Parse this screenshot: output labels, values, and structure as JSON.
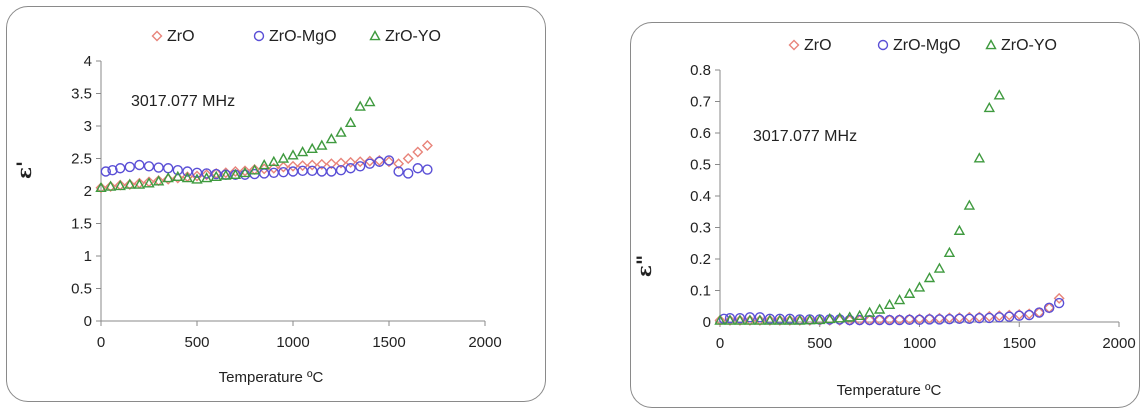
{
  "colors": {
    "ZrO": "#e8847a",
    "ZrO-MgO": "#5a4fd6",
    "ZrO-YO": "#3f9a3f"
  },
  "chart_data": [
    {
      "type": "scatter",
      "title": "",
      "xlabel": "Temperature  ºC",
      "ylabel": "ε'",
      "annotation": "3017.077  MHz",
      "xlim": [
        0,
        2000
      ],
      "ylim": [
        0,
        4
      ],
      "xticks": [
        "0",
        "500",
        "1000",
        "1500",
        "2000"
      ],
      "yticks": [
        "0",
        "0.5",
        "1",
        "1.5",
        "2",
        "2.5",
        "3",
        "3.5",
        "4"
      ],
      "legend": [
        "ZrO",
        "ZrO-MgO",
        "ZrO-YO"
      ],
      "legend_position": "top",
      "series": [
        {
          "name": "ZrO",
          "marker": "diamond",
          "x": [
            0,
            50,
            100,
            150,
            200,
            250,
            300,
            350,
            400,
            450,
            500,
            550,
            600,
            650,
            700,
            750,
            800,
            850,
            900,
            950,
            1000,
            1050,
            1100,
            1150,
            1200,
            1250,
            1300,
            1350,
            1400,
            1450,
            1500,
            1550,
            1600,
            1650,
            1700
          ],
          "y": [
            2.05,
            2.07,
            2.09,
            2.1,
            2.12,
            2.14,
            2.16,
            2.18,
            2.2,
            2.22,
            2.23,
            2.25,
            2.27,
            2.28,
            2.3,
            2.31,
            2.33,
            2.34,
            2.35,
            2.37,
            2.38,
            2.39,
            2.4,
            2.41,
            2.42,
            2.43,
            2.44,
            2.45,
            2.46,
            2.47,
            2.45,
            2.42,
            2.5,
            2.6,
            2.7
          ]
        },
        {
          "name": "ZrO-MgO",
          "marker": "circle",
          "x": [
            25,
            60,
            100,
            150,
            200,
            250,
            300,
            350,
            400,
            450,
            500,
            550,
            600,
            650,
            700,
            750,
            800,
            850,
            900,
            950,
            1000,
            1050,
            1100,
            1150,
            1200,
            1250,
            1300,
            1350,
            1400,
            1450,
            1500,
            1550,
            1600,
            1650,
            1700
          ],
          "y": [
            2.3,
            2.32,
            2.35,
            2.37,
            2.4,
            2.38,
            2.36,
            2.35,
            2.32,
            2.3,
            2.28,
            2.27,
            2.26,
            2.25,
            2.25,
            2.25,
            2.26,
            2.27,
            2.28,
            2.29,
            2.3,
            2.31,
            2.31,
            2.3,
            2.3,
            2.32,
            2.35,
            2.38,
            2.42,
            2.45,
            2.47,
            2.3,
            2.27,
            2.35,
            2.33
          ]
        },
        {
          "name": "ZrO-YO",
          "marker": "triangle",
          "x": [
            0,
            50,
            100,
            150,
            200,
            250,
            300,
            350,
            400,
            450,
            500,
            550,
            600,
            650,
            700,
            750,
            800,
            850,
            900,
            950,
            1000,
            1050,
            1100,
            1150,
            1200,
            1250,
            1300,
            1350,
            1400
          ],
          "y": [
            2.05,
            2.07,
            2.08,
            2.1,
            2.1,
            2.12,
            2.15,
            2.2,
            2.22,
            2.2,
            2.18,
            2.2,
            2.22,
            2.24,
            2.25,
            2.28,
            2.32,
            2.4,
            2.45,
            2.5,
            2.55,
            2.6,
            2.65,
            2.7,
            2.8,
            2.9,
            3.05,
            3.3,
            3.37
          ]
        }
      ]
    },
    {
      "type": "scatter",
      "title": "",
      "xlabel": "Temperature  ºC",
      "ylabel": "ε\"",
      "annotation": "3017.077  MHz",
      "xlim": [
        0,
        2000
      ],
      "ylim": [
        0,
        0.8
      ],
      "xticks": [
        "0",
        "500",
        "1000",
        "1500",
        "2000"
      ],
      "yticks": [
        "0",
        "0.1",
        "0.2",
        "0.3",
        "0.4",
        "0.5",
        "0.6",
        "0.7",
        "0.8"
      ],
      "legend": [
        "ZrO",
        "ZrO-MgO",
        "ZrO-YO"
      ],
      "legend_position": "top",
      "series": [
        {
          "name": "ZrO",
          "marker": "diamond",
          "x": [
            0,
            50,
            100,
            150,
            200,
            250,
            300,
            350,
            400,
            450,
            500,
            550,
            600,
            650,
            700,
            750,
            800,
            850,
            900,
            950,
            1000,
            1050,
            1100,
            1150,
            1200,
            1250,
            1300,
            1350,
            1400,
            1450,
            1500,
            1550,
            1600,
            1650,
            1700
          ],
          "y": [
            0.005,
            0.005,
            0.005,
            0.005,
            0.005,
            0.005,
            0.005,
            0.005,
            0.005,
            0.005,
            0.005,
            0.005,
            0.005,
            0.005,
            0.006,
            0.006,
            0.007,
            0.007,
            0.008,
            0.009,
            0.01,
            0.011,
            0.012,
            0.013,
            0.014,
            0.015,
            0.016,
            0.018,
            0.02,
            0.022,
            0.024,
            0.026,
            0.03,
            0.045,
            0.075
          ]
        },
        {
          "name": "ZrO-MgO",
          "marker": "circle",
          "x": [
            20,
            50,
            100,
            150,
            200,
            250,
            300,
            350,
            400,
            450,
            500,
            550,
            600,
            650,
            700,
            750,
            800,
            850,
            900,
            950,
            1000,
            1050,
            1100,
            1150,
            1200,
            1250,
            1300,
            1350,
            1400,
            1450,
            1500,
            1550,
            1600,
            1650,
            1700
          ],
          "y": [
            0.01,
            0.012,
            0.012,
            0.015,
            0.015,
            0.01,
            0.01,
            0.01,
            0.008,
            0.008,
            0.008,
            0.008,
            0.008,
            0.006,
            0.006,
            0.006,
            0.006,
            0.006,
            0.006,
            0.007,
            0.007,
            0.008,
            0.008,
            0.009,
            0.01,
            0.01,
            0.012,
            0.013,
            0.015,
            0.017,
            0.02,
            0.022,
            0.03,
            0.045,
            0.06
          ]
        },
        {
          "name": "ZrO-YO",
          "marker": "triangle",
          "x": [
            0,
            50,
            100,
            150,
            200,
            250,
            300,
            350,
            400,
            450,
            500,
            550,
            600,
            650,
            700,
            750,
            800,
            850,
            900,
            950,
            1000,
            1050,
            1100,
            1150,
            1200,
            1250,
            1300,
            1350,
            1400
          ],
          "y": [
            0.005,
            0.005,
            0.005,
            0.005,
            0.005,
            0.005,
            0.005,
            0.005,
            0.005,
            0.006,
            0.007,
            0.01,
            0.012,
            0.015,
            0.02,
            0.03,
            0.04,
            0.055,
            0.07,
            0.09,
            0.11,
            0.14,
            0.17,
            0.22,
            0.29,
            0.37,
            0.52,
            0.68,
            0.72
          ]
        }
      ]
    }
  ]
}
